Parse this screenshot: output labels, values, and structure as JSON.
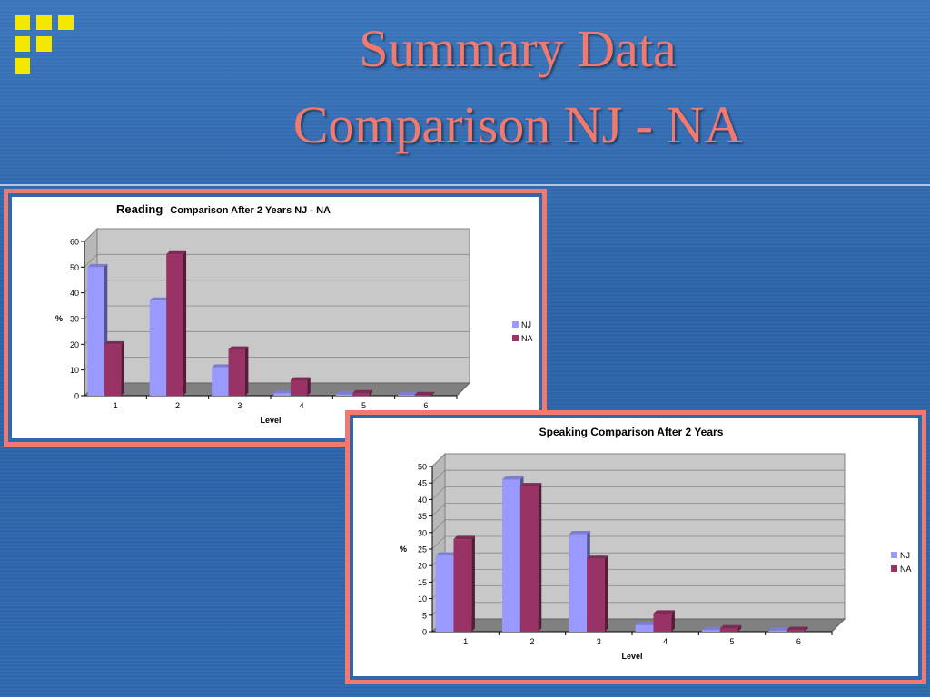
{
  "slide": {
    "title_line1": "Summary Data",
    "title_line2": "Comparison NJ - NA",
    "colors": {
      "title": "#f07a70",
      "logo": "#f4e800",
      "frame": "#f07a70",
      "background": "#2f68ae"
    }
  },
  "chart_data": [
    {
      "type": "bar",
      "title_main": "Reading",
      "title_sub": "Comparison After 2 Years   NJ - NA",
      "xlabel": "Level",
      "ylabel": "%",
      "ylim": [
        0,
        60
      ],
      "yticks": [
        0,
        10,
        20,
        30,
        40,
        50,
        60
      ],
      "categories": [
        "1",
        "2",
        "3",
        "4",
        "5",
        "6"
      ],
      "series": [
        {
          "name": "NJ",
          "color": "#9999ff",
          "values": [
            50,
            37,
            11,
            1,
            0.5,
            0.3
          ]
        },
        {
          "name": "NA",
          "color": "#993366",
          "values": [
            20,
            55,
            18,
            6,
            1,
            0.3
          ]
        }
      ],
      "grid": true,
      "legend": "right"
    },
    {
      "type": "bar",
      "title_main": "Speaking Comparison After 2 Years",
      "title_sub": "",
      "xlabel": "Level",
      "ylabel": "%",
      "ylim": [
        0,
        50
      ],
      "yticks": [
        0,
        5,
        10,
        15,
        20,
        25,
        30,
        35,
        40,
        45,
        50
      ],
      "categories": [
        "1",
        "2",
        "3",
        "4",
        "5",
        "6"
      ],
      "series": [
        {
          "name": "NJ",
          "color": "#9999ff",
          "values": [
            23,
            46,
            29.5,
            2,
            0.5,
            0.3
          ]
        },
        {
          "name": "NA",
          "color": "#993366",
          "values": [
            28,
            44,
            22,
            5.5,
            1,
            0.5
          ]
        }
      ],
      "grid": true,
      "legend": "right"
    }
  ]
}
